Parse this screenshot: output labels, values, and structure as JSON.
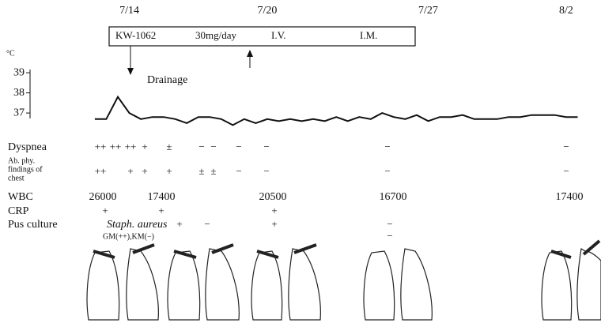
{
  "chart_data": {
    "type": "line",
    "y_unit": "°C",
    "x": [
      -1.5,
      -1,
      -0.5,
      0,
      0.5,
      1,
      1.5,
      2,
      2.5,
      3,
      3.5,
      4,
      4.5,
      5,
      5.5,
      6,
      6.5,
      7,
      7.5,
      8,
      8.5,
      9,
      9.5,
      10,
      10.5,
      11,
      11.5,
      12,
      12.5,
      13,
      13.5,
      14,
      14.5,
      15,
      15.5,
      16,
      16.5,
      17,
      17.5,
      18,
      18.5,
      19,
      19.5
    ],
    "values": [
      36.7,
      36.7,
      37.8,
      37.0,
      36.7,
      36.8,
      36.8,
      36.7,
      36.5,
      36.8,
      36.8,
      36.7,
      36.4,
      36.7,
      36.5,
      36.7,
      36.6,
      36.7,
      36.6,
      36.7,
      36.6,
      36.8,
      36.6,
      36.8,
      36.7,
      37.0,
      36.8,
      36.7,
      36.9,
      36.6,
      36.8,
      36.8,
      36.9,
      36.7,
      36.7,
      36.7,
      36.8,
      36.8,
      36.9,
      36.9,
      36.9,
      36.8,
      36.8
    ],
    "color": "#111",
    "xlim": [
      -1.6,
      20
    ],
    "xticks": [
      {
        "value": 0,
        "label": "7/14"
      },
      {
        "value": 6,
        "label": "7/20"
      },
      {
        "value": 13,
        "label": "7/27"
      },
      {
        "value": 19,
        "label": "8/2"
      }
    ],
    "ylim": [
      36.2,
      39.2
    ],
    "yticks": [
      37,
      38,
      39
    ],
    "regimen": [
      "KW-1062",
      "30mg/day",
      "I.V.",
      "I.M."
    ],
    "event": "Drainage"
  },
  "clinical_table": [
    {
      "label": [
        "Dyspnea"
      ],
      "entries": [
        "++",
        "++",
        "++",
        "+",
        "±",
        "−",
        "−",
        "−",
        "−",
        "−",
        "−"
      ]
    },
    {
      "label": [
        "Ab. phy.",
        "findings of",
        "chest"
      ],
      "entries": [
        "++",
        "+",
        "+",
        "+",
        "±",
        "±",
        "−",
        "−",
        "−",
        "−"
      ]
    },
    {
      "label": [
        "WBC"
      ],
      "entries": [
        26000,
        17400,
        20500,
        16700,
        17400
      ]
    },
    {
      "label": [
        "CRP"
      ],
      "entries": [
        "+",
        "+",
        "+"
      ]
    },
    {
      "label": [
        "Pus culture"
      ],
      "entries": [
        "Staph. aureus",
        "+",
        "−",
        "+",
        "−",
        "GM(++),KM(−)",
        "−"
      ]
    }
  ]
}
